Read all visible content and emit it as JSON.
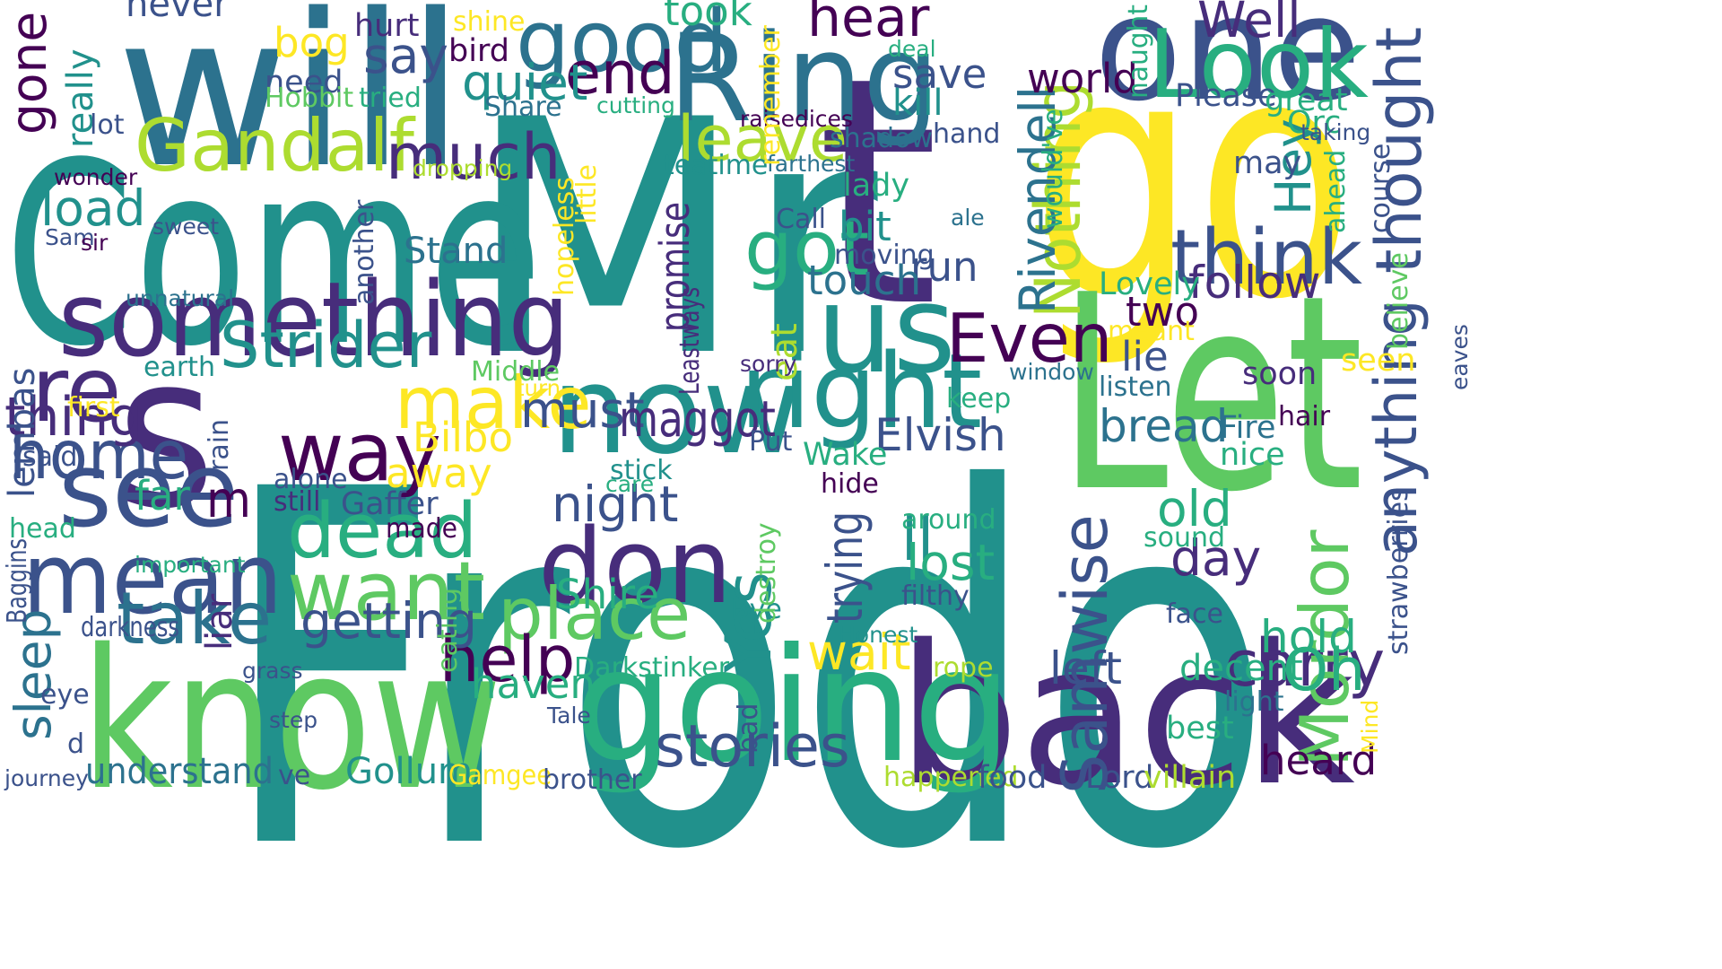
{
  "palette": {
    "c1": "#440154",
    "c2": "#472d7b",
    "c3": "#3b528b",
    "c4": "#2c728e",
    "c5": "#21918c",
    "c6": "#28ae80",
    "c7": "#5ec962",
    "c8": "#addc30",
    "c9": "#fde725"
  },
  "words": [
    {
      "text": "Frodo",
      "color": "c5",
      "rot": 0
    },
    {
      "text": "Mr",
      "color": "c5",
      "rot": 0
    },
    {
      "text": "Come",
      "color": "c5",
      "rot": 0
    },
    {
      "text": "go",
      "color": "c9",
      "rot": 0
    },
    {
      "text": "Let",
      "color": "c7",
      "rot": 0
    },
    {
      "text": "will",
      "color": "c4",
      "rot": 0
    },
    {
      "text": "s",
      "color": "c2",
      "rot": 0
    },
    {
      "text": "t",
      "color": "c2",
      "rot": 0
    },
    {
      "text": "know",
      "color": "c7",
      "rot": 0
    },
    {
      "text": "back",
      "color": "c2",
      "rot": 0
    },
    {
      "text": "going",
      "color": "c6",
      "rot": 0
    },
    {
      "text": "Ring",
      "color": "c4",
      "rot": 0
    },
    {
      "text": "one",
      "color": "c3",
      "rot": 0
    },
    {
      "text": "now",
      "color": "c5",
      "rot": 0
    },
    {
      "text": "us",
      "color": "c5",
      "rot": 0
    },
    {
      "text": "good",
      "color": "c4",
      "rot": 0
    },
    {
      "text": "Look",
      "color": "c6",
      "rot": 0
    },
    {
      "text": "something",
      "color": "c2",
      "rot": 0
    },
    {
      "text": "right",
      "color": "c5",
      "rot": 0
    },
    {
      "text": "don",
      "color": "c2",
      "rot": 0
    },
    {
      "text": "mean",
      "color": "c3",
      "rot": 0
    },
    {
      "text": "see",
      "color": "c3",
      "rot": 0
    },
    {
      "text": "re",
      "color": "c2",
      "rot": 0
    },
    {
      "text": "way",
      "color": "c1",
      "rot": 0
    },
    {
      "text": "want",
      "color": "c7",
      "rot": 0
    },
    {
      "text": "place",
      "color": "c7",
      "rot": 0
    },
    {
      "text": "Gandalf",
      "color": "c8",
      "rot": 0
    },
    {
      "text": "think",
      "color": "c3",
      "rot": 0
    },
    {
      "text": "dead",
      "color": "c6",
      "rot": 0
    },
    {
      "text": "take",
      "color": "c4",
      "rot": 0
    },
    {
      "text": "make",
      "color": "c9",
      "rot": 0
    },
    {
      "text": "Strider",
      "color": "c5",
      "rot": 0
    },
    {
      "text": "got",
      "color": "c6",
      "rot": 0
    },
    {
      "text": "help",
      "color": "c1",
      "rot": 0
    },
    {
      "text": "Even",
      "color": "c1",
      "rot": 0
    },
    {
      "text": "home",
      "color": "c3",
      "rot": 0
    },
    {
      "text": "leave",
      "color": "c8",
      "rot": 0
    },
    {
      "text": "much",
      "color": "c2",
      "rot": 0
    },
    {
      "text": "Nothing",
      "color": "c8",
      "rot": -90
    },
    {
      "text": "thought",
      "color": "c3",
      "rot": -90
    },
    {
      "text": "Samwise",
      "color": "c3",
      "rot": -90
    },
    {
      "text": "Yes",
      "color": "c5",
      "rot": -90
    },
    {
      "text": "carry",
      "color": "c2",
      "rot": 0
    },
    {
      "text": "stories",
      "color": "c3",
      "rot": 0
    },
    {
      "text": "getting",
      "color": "c3",
      "rot": 0
    },
    {
      "text": "Mordor",
      "color": "c7",
      "rot": -90
    },
    {
      "text": "anything",
      "color": "c3",
      "rot": -90
    },
    {
      "text": "Oh",
      "color": "c6",
      "rot": 0
    },
    {
      "text": "thing",
      "color": "c2",
      "rot": 0
    },
    {
      "text": "must",
      "color": "c3",
      "rot": 0
    },
    {
      "text": "maggot",
      "color": "c2",
      "rot": 0
    },
    {
      "text": "end",
      "color": "c1",
      "rot": 0
    },
    {
      "text": "hear",
      "color": "c1",
      "rot": 0
    },
    {
      "text": "Well",
      "color": "c2",
      "rot": 0
    },
    {
      "text": "say",
      "color": "c3",
      "rot": 0
    },
    {
      "text": "quiet",
      "color": "c5",
      "rot": 0
    },
    {
      "text": "Elvish",
      "color": "c3",
      "rot": 0
    },
    {
      "text": "bread",
      "color": "c4",
      "rot": 0
    },
    {
      "text": "sleep",
      "color": "c4",
      "rot": -90
    },
    {
      "text": "night",
      "color": "c3",
      "rot": 0
    },
    {
      "text": "ll",
      "color": "c5",
      "rot": 0
    },
    {
      "text": "day",
      "color": "c2",
      "rot": 0
    },
    {
      "text": "old",
      "color": "c6",
      "rot": 0
    },
    {
      "text": "lost",
      "color": "c6",
      "rot": 0
    },
    {
      "text": "follow",
      "color": "c2",
      "rot": 0
    },
    {
      "text": "trying",
      "color": "c3",
      "rot": -90
    },
    {
      "text": "Rivendell",
      "color": "c4",
      "rot": -90
    },
    {
      "text": "gone",
      "color": "c1",
      "rot": -90
    },
    {
      "text": "Hey",
      "color": "c5",
      "rot": -90
    },
    {
      "text": "Bilbo",
      "color": "c9",
      "rot": 0
    },
    {
      "text": "away",
      "color": "c9",
      "rot": 0
    },
    {
      "text": "Shire",
      "color": "c6",
      "rot": 0
    },
    {
      "text": "wait",
      "color": "c9",
      "rot": 0
    },
    {
      "text": "left",
      "color": "c3",
      "rot": 0
    },
    {
      "text": "hold",
      "color": "c6",
      "rot": 0
    },
    {
      "text": "heard",
      "color": "c1",
      "rot": 0
    },
    {
      "text": "haven",
      "color": "c6",
      "rot": 0
    },
    {
      "text": "promise",
      "color": "c2",
      "rot": -90
    },
    {
      "text": "world",
      "color": "c1",
      "rot": 0
    },
    {
      "text": "save",
      "color": "c3",
      "rot": 0
    },
    {
      "text": "took",
      "color": "c6",
      "rot": 0
    },
    {
      "text": "bit",
      "color": "c5",
      "rot": 0
    },
    {
      "text": "run",
      "color": "c3",
      "rot": 0
    },
    {
      "text": "touch",
      "color": "c4",
      "rot": 0
    },
    {
      "text": "two",
      "color": "c1",
      "rot": 0
    },
    {
      "text": "lie",
      "color": "c3",
      "rot": 0
    },
    {
      "text": "load",
      "color": "c5",
      "rot": 0
    },
    {
      "text": "m",
      "color": "c1",
      "rot": 0
    },
    {
      "text": "far",
      "color": "c6",
      "rot": 0
    },
    {
      "text": "lembas",
      "color": "c3",
      "rot": -90
    },
    {
      "text": "really",
      "color": "c5",
      "rot": -90
    },
    {
      "text": "bog",
      "color": "c9",
      "rot": 0
    },
    {
      "text": "kill",
      "color": "c5",
      "rot": 0
    },
    {
      "text": "decent",
      "color": "c6",
      "rot": 0
    },
    {
      "text": "Gollum",
      "color": "c5",
      "rot": 0
    },
    {
      "text": "understand",
      "color": "c4",
      "rot": 0
    },
    {
      "text": "liar",
      "color": "c2",
      "rot": -90
    },
    {
      "text": "eat",
      "color": "c8",
      "rot": -90
    },
    {
      "text": "Darkstinker",
      "color": "c6",
      "rot": 0
    },
    {
      "text": "never",
      "color": "c3",
      "rot": 0
    },
    {
      "text": "hurt",
      "color": "c2",
      "rot": 0
    },
    {
      "text": "shine",
      "color": "c9",
      "rot": 0
    },
    {
      "text": "bird",
      "color": "c1",
      "rot": 0
    },
    {
      "text": "need",
      "color": "c3",
      "rot": 0
    },
    {
      "text": "Hobbit",
      "color": "c7",
      "rot": 0
    },
    {
      "text": "tried",
      "color": "c6",
      "rot": 0
    },
    {
      "text": "Share",
      "color": "c4",
      "rot": 0
    },
    {
      "text": "lot",
      "color": "c3",
      "rot": 0
    },
    {
      "text": "cutting",
      "color": "c6",
      "rot": 0
    },
    {
      "text": "raisedices",
      "color": "c1",
      "rot": 0
    },
    {
      "text": "shadow",
      "color": "c4",
      "rot": 0
    },
    {
      "text": "hand",
      "color": "c3",
      "rot": 0
    },
    {
      "text": "Please",
      "color": "c3",
      "rot": 0
    },
    {
      "text": "great",
      "color": "c6",
      "rot": 0
    },
    {
      "text": "Orc",
      "color": "c6",
      "rot": 0
    },
    {
      "text": "taking",
      "color": "c3",
      "rot": 0
    },
    {
      "text": "may",
      "color": "c3",
      "rot": 0
    },
    {
      "text": "wonder",
      "color": "c1",
      "rot": 0
    },
    {
      "text": "dropping",
      "color": "c8",
      "rot": 0
    },
    {
      "text": "teatime",
      "color": "c5",
      "rot": 0
    },
    {
      "text": "farthest",
      "color": "c4",
      "rot": 0
    },
    {
      "text": "lady",
      "color": "c6",
      "rot": 0
    },
    {
      "text": "Call",
      "color": "c3",
      "rot": 0
    },
    {
      "text": "ale",
      "color": "c4",
      "rot": 0
    },
    {
      "text": "sweet",
      "color": "c3",
      "rot": 0
    },
    {
      "text": "Sam",
      "color": "c3",
      "rot": 0
    },
    {
      "text": "sir",
      "color": "c1",
      "rot": 0
    },
    {
      "text": "Stand",
      "color": "c4",
      "rot": 0
    },
    {
      "text": "moving",
      "color": "c3",
      "rot": 0
    },
    {
      "text": "Lovely",
      "color": "c6",
      "rot": 0
    },
    {
      "text": "unnatural",
      "color": "c4",
      "rot": 0
    },
    {
      "text": "meant",
      "color": "c9",
      "rot": 0
    },
    {
      "text": "earth",
      "color": "c5",
      "rot": 0
    },
    {
      "text": "Middle",
      "color": "c7",
      "rot": 0
    },
    {
      "text": "sorry",
      "color": "c2",
      "rot": 0
    },
    {
      "text": "window",
      "color": "c4",
      "rot": 0
    },
    {
      "text": "soon",
      "color": "c2",
      "rot": 0
    },
    {
      "text": "seen",
      "color": "c9",
      "rot": 0
    },
    {
      "text": "listen",
      "color": "c4",
      "rot": 0
    },
    {
      "text": "first",
      "color": "c9",
      "rot": 0
    },
    {
      "text": "turn",
      "color": "c9",
      "rot": 0
    },
    {
      "text": "keep",
      "color": "c6",
      "rot": 0
    },
    {
      "text": "hair",
      "color": "c1",
      "rot": 0
    },
    {
      "text": "said",
      "color": "c3",
      "rot": 0
    },
    {
      "text": "Put",
      "color": "c3",
      "rot": 0
    },
    {
      "text": "Wake",
      "color": "c6",
      "rot": 0
    },
    {
      "text": "Fire",
      "color": "c4",
      "rot": 0
    },
    {
      "text": "nice",
      "color": "c6",
      "rot": 0
    },
    {
      "text": "alone",
      "color": "c3",
      "rot": 0
    },
    {
      "text": "stick",
      "color": "c5",
      "rot": 0
    },
    {
      "text": "still",
      "color": "c2",
      "rot": 0
    },
    {
      "text": "Gaffer",
      "color": "c3",
      "rot": 0
    },
    {
      "text": "care",
      "color": "c6",
      "rot": 0
    },
    {
      "text": "hide",
      "color": "c1",
      "rot": 0
    },
    {
      "text": "head",
      "color": "c6",
      "rot": 0
    },
    {
      "text": "made",
      "color": "c1",
      "rot": 0
    },
    {
      "text": "around",
      "color": "c6",
      "rot": 0
    },
    {
      "text": "sound",
      "color": "c6",
      "rot": 0
    },
    {
      "text": "important",
      "color": "c6",
      "rot": 0
    },
    {
      "text": "filthy",
      "color": "c3",
      "rot": 0
    },
    {
      "text": "Bye",
      "color": "c5",
      "rot": 0
    },
    {
      "text": "face",
      "color": "c3",
      "rot": 0
    },
    {
      "text": "darkness",
      "color": "c3",
      "rot": 0
    },
    {
      "text": "Honest",
      "color": "c5",
      "rot": 0
    },
    {
      "text": "grass",
      "color": "c3",
      "rot": 0
    },
    {
      "text": "rope",
      "color": "c8",
      "rot": 0
    },
    {
      "text": "eye",
      "color": "c3",
      "rot": 0
    },
    {
      "text": "light",
      "color": "c4",
      "rot": 0
    },
    {
      "text": "step",
      "color": "c3",
      "rot": 0
    },
    {
      "text": "Tale",
      "color": "c3",
      "rot": 0
    },
    {
      "text": "best",
      "color": "c6",
      "rot": 0
    },
    {
      "text": "d",
      "color": "c3",
      "rot": 0
    },
    {
      "text": "journey",
      "color": "c3",
      "rot": 0
    },
    {
      "text": "ve",
      "color": "c3",
      "rot": 0
    },
    {
      "text": "Gamgee",
      "color": "c9",
      "rot": 0
    },
    {
      "text": "brother",
      "color": "c3",
      "rot": 0
    },
    {
      "text": "happened",
      "color": "c8",
      "rot": 0
    },
    {
      "text": "food",
      "color": "c3",
      "rot": 0
    },
    {
      "text": "Lord",
      "color": "c3",
      "rot": 0
    },
    {
      "text": "villain",
      "color": "c8",
      "rot": 0
    },
    {
      "text": "deal",
      "color": "c6",
      "rot": 0
    },
    {
      "text": "naught",
      "color": "c6",
      "rot": -90
    },
    {
      "text": "remember",
      "color": "c9",
      "rot": -90
    },
    {
      "text": "little",
      "color": "c9",
      "rot": -90
    },
    {
      "text": "hopeless",
      "color": "c9",
      "rot": -90
    },
    {
      "text": "would've",
      "color": "c6",
      "rot": -90
    },
    {
      "text": "another",
      "color": "c3",
      "rot": -90
    },
    {
      "text": "ahead",
      "color": "c6",
      "rot": -90
    },
    {
      "text": "course",
      "color": "c3",
      "rot": -90
    },
    {
      "text": "believe",
      "color": "c7",
      "rot": -90
    },
    {
      "text": "Leastways",
      "color": "c2",
      "rot": -90
    },
    {
      "text": "eaves",
      "color": "c3",
      "rot": -90
    },
    {
      "text": "strawberries",
      "color": "c3",
      "rot": -90
    },
    {
      "text": "rain",
      "color": "c3",
      "rot": -90
    },
    {
      "text": "Baggins",
      "color": "c3",
      "rot": -90
    },
    {
      "text": "destroy",
      "color": "c7",
      "rot": -90
    },
    {
      "text": "eating",
      "color": "c7",
      "rot": -90
    },
    {
      "text": "bad",
      "color": "c3",
      "rot": -90
    },
    {
      "text": "Mind",
      "color": "c9",
      "rot": -90
    }
  ]
}
